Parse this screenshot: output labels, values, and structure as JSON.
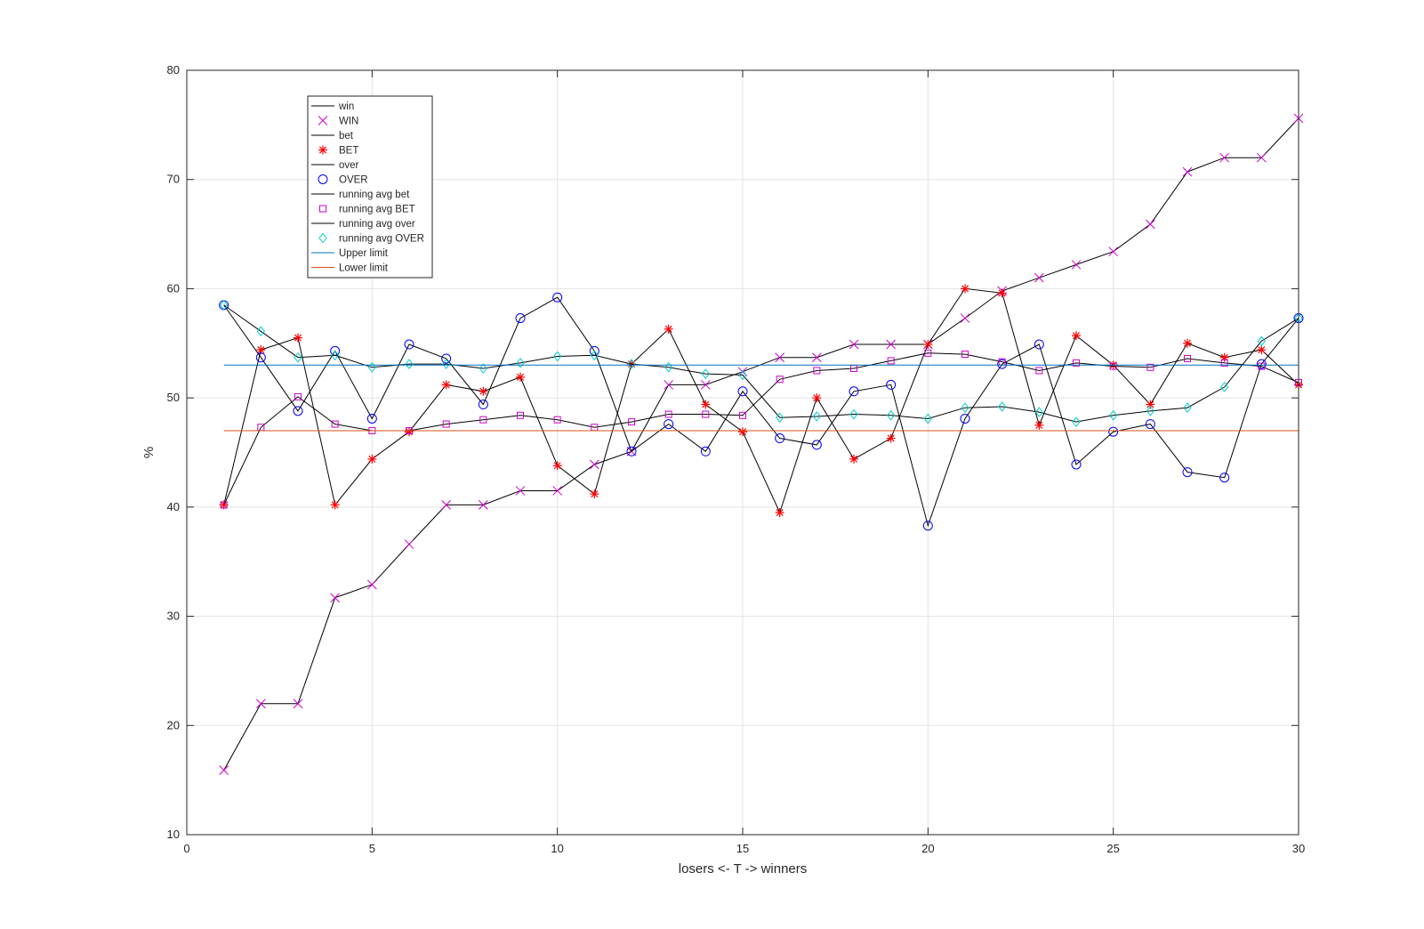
{
  "chart_data": {
    "type": "line",
    "xlabel": "losers <- T -> winners",
    "ylabel": "%",
    "xlim": [
      0,
      30
    ],
    "ylim": [
      10,
      80
    ],
    "xticks": [
      0,
      5,
      10,
      15,
      20,
      25,
      30
    ],
    "yticks": [
      10,
      20,
      30,
      40,
      50,
      60,
      70,
      80
    ],
    "xtick_labels": [
      "0",
      "5",
      "10",
      "15",
      "20",
      "25",
      "30"
    ],
    "ytick_labels": [
      "10",
      "20",
      "30",
      "40",
      "50",
      "60",
      "70",
      "80"
    ],
    "grid": true,
    "legend_position": "top-left",
    "x": [
      1,
      2,
      3,
      4,
      5,
      6,
      7,
      8,
      9,
      10,
      11,
      12,
      13,
      14,
      15,
      16,
      17,
      18,
      19,
      20,
      21,
      22,
      23,
      24,
      25,
      26,
      27,
      28,
      29,
      30
    ],
    "series": [
      {
        "name": "win",
        "style": "line",
        "color": "#000000",
        "values": [
          15.9,
          22.0,
          22.0,
          31.7,
          32.9,
          36.6,
          40.2,
          40.2,
          41.5,
          41.5,
          43.9,
          45.1,
          51.2,
          51.2,
          52.4,
          53.7,
          53.7,
          54.9,
          54.9,
          54.9,
          57.3,
          59.8,
          61.0,
          62.2,
          63.4,
          65.9,
          70.7,
          72.0,
          72.0,
          75.6
        ]
      },
      {
        "name": "WIN",
        "style": "marker",
        "marker": "x",
        "color": "#cc00cc",
        "values": [
          15.9,
          22.0,
          22.0,
          31.7,
          32.9,
          36.6,
          40.2,
          40.2,
          41.5,
          41.5,
          43.9,
          45.1,
          51.2,
          51.2,
          52.4,
          53.7,
          53.7,
          54.9,
          54.9,
          54.9,
          57.3,
          59.8,
          61.0,
          62.2,
          63.4,
          65.9,
          70.7,
          72.0,
          72.0,
          75.6
        ]
      },
      {
        "name": "bet",
        "style": "line",
        "color": "#000000",
        "values": [
          40.2,
          54.4,
          55.5,
          40.2,
          44.4,
          46.9,
          51.2,
          50.6,
          51.9,
          43.8,
          41.2,
          53.1,
          56.3,
          49.4,
          46.9,
          39.5,
          50.0,
          44.4,
          46.3,
          54.9,
          60.0,
          59.6,
          47.5,
          55.7,
          53.0,
          49.4,
          55.0,
          53.7,
          54.4,
          51.2
        ]
      },
      {
        "name": "BET",
        "style": "marker",
        "marker": "asterisk",
        "color": "#ff0000",
        "values": [
          40.2,
          54.4,
          55.5,
          40.2,
          44.4,
          46.9,
          51.2,
          50.6,
          51.9,
          43.8,
          41.2,
          53.1,
          56.3,
          49.4,
          46.9,
          39.5,
          50.0,
          44.4,
          46.3,
          54.9,
          60.0,
          59.6,
          47.5,
          55.7,
          53.0,
          49.4,
          55.0,
          53.7,
          54.4,
          51.2
        ]
      },
      {
        "name": "over",
        "style": "line",
        "color": "#000000",
        "values": [
          58.5,
          53.7,
          48.8,
          54.3,
          48.1,
          54.9,
          53.6,
          49.4,
          57.3,
          59.2,
          54.3,
          45.1,
          47.6,
          45.1,
          50.6,
          46.3,
          45.7,
          50.6,
          51.2,
          38.3,
          48.1,
          53.1,
          54.9,
          43.9,
          46.9,
          47.6,
          43.2,
          42.7,
          53.1,
          57.3
        ]
      },
      {
        "name": "OVER",
        "style": "marker",
        "marker": "circle",
        "color": "#0000ff",
        "values": [
          58.5,
          53.7,
          48.8,
          54.3,
          48.1,
          54.9,
          53.6,
          49.4,
          57.3,
          59.2,
          54.3,
          45.1,
          47.6,
          45.1,
          50.6,
          46.3,
          45.7,
          50.6,
          51.2,
          38.3,
          48.1,
          53.1,
          54.9,
          43.9,
          46.9,
          47.6,
          43.2,
          42.7,
          53.1,
          57.3
        ]
      },
      {
        "name": "running avg bet",
        "style": "line",
        "color": "#000000",
        "values": [
          40.2,
          47.3,
          50.1,
          47.6,
          47.0,
          47.0,
          47.6,
          48.0,
          48.4,
          48.0,
          47.3,
          47.8,
          48.5,
          48.5,
          48.4,
          51.7,
          52.5,
          52.7,
          53.4,
          54.1,
          54.0,
          53.3,
          52.5,
          53.2,
          52.9,
          52.8,
          53.6,
          53.2,
          52.9,
          51.4
        ]
      },
      {
        "name": "running avg BET",
        "style": "marker",
        "marker": "square",
        "color": "#cc00cc",
        "values": [
          40.2,
          47.3,
          50.1,
          47.6,
          47.0,
          47.0,
          47.6,
          48.0,
          48.4,
          48.0,
          47.3,
          47.8,
          48.5,
          48.5,
          48.4,
          51.7,
          52.5,
          52.7,
          53.4,
          54.1,
          54.0,
          53.3,
          52.5,
          53.2,
          52.9,
          52.8,
          53.6,
          53.2,
          52.9,
          51.4
        ]
      },
      {
        "name": "running avg over",
        "style": "line",
        "color": "#000000",
        "values": [
          58.5,
          56.1,
          53.7,
          53.9,
          52.8,
          53.1,
          53.1,
          52.7,
          53.2,
          53.8,
          53.9,
          53.1,
          52.8,
          52.2,
          52.1,
          48.2,
          48.3,
          48.5,
          48.4,
          48.1,
          49.1,
          49.2,
          48.7,
          47.8,
          48.4,
          48.8,
          49.1,
          51.0,
          55.2,
          57.3
        ]
      },
      {
        "name": "running avg OVER",
        "style": "marker",
        "marker": "diamond",
        "color": "#00cccc",
        "values": [
          58.5,
          56.1,
          53.7,
          53.9,
          52.8,
          53.1,
          53.1,
          52.7,
          53.2,
          53.8,
          53.9,
          53.1,
          52.8,
          52.2,
          52.1,
          48.2,
          48.3,
          48.5,
          48.4,
          48.1,
          49.1,
          49.2,
          48.7,
          47.8,
          48.4,
          48.8,
          49.1,
          51.0,
          55.2,
          57.3
        ]
      },
      {
        "name": "Upper limit",
        "style": "line",
        "color": "#0072bd",
        "values": [
          53,
          53,
          53,
          53,
          53,
          53,
          53,
          53,
          53,
          53,
          53,
          53,
          53,
          53,
          53,
          53,
          53,
          53,
          53,
          53,
          53,
          53,
          53,
          53,
          53,
          53,
          53,
          53,
          53,
          53
        ]
      },
      {
        "name": "Lower limit",
        "style": "line",
        "color": "#d95319",
        "values": [
          47,
          47,
          47,
          47,
          47,
          47,
          47,
          47,
          47,
          47,
          47,
          47,
          47,
          47,
          47,
          47,
          47,
          47,
          47,
          47,
          47,
          47,
          47,
          47,
          47,
          47,
          47,
          47,
          47,
          47
        ]
      }
    ]
  }
}
